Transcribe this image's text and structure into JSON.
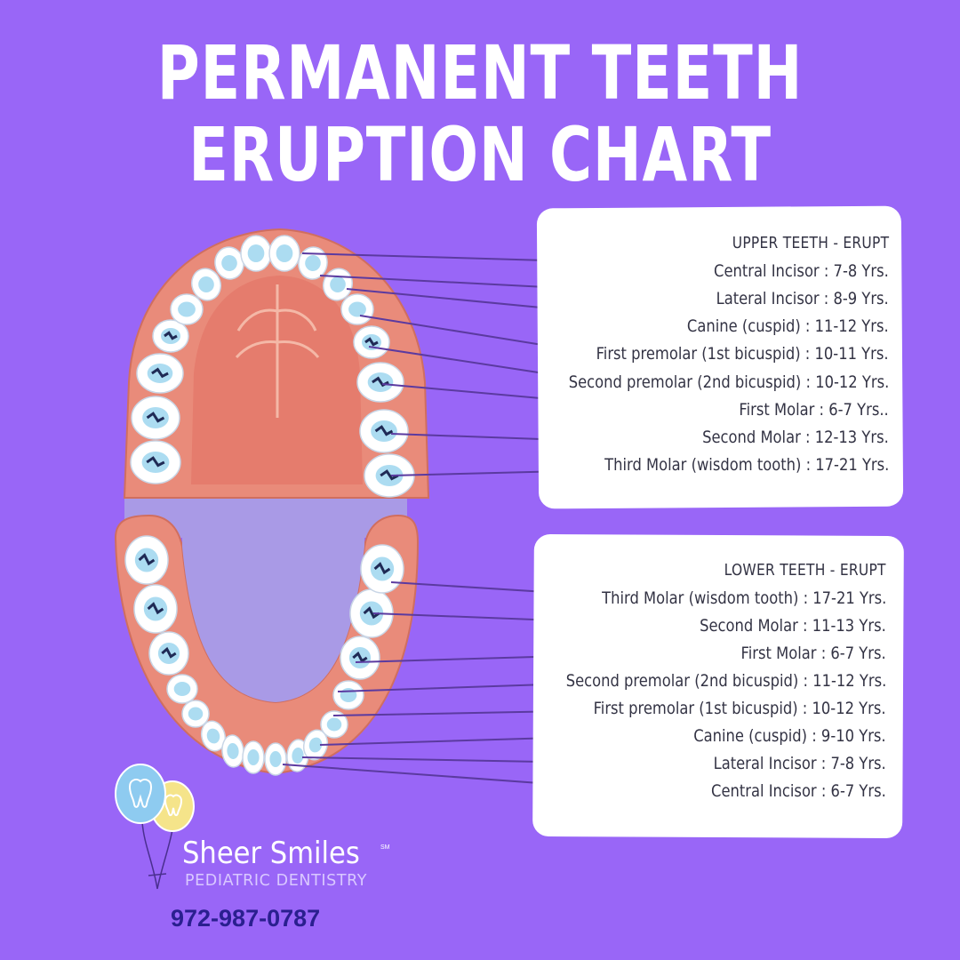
{
  "title": {
    "line1": "PERMANENT TEETH",
    "line2": "ERUPTION CHART"
  },
  "upper": {
    "heading": "UPPER TEETH - ERUPT",
    "items": [
      "Central Incisor : 7-8 Yrs.",
      "Lateral Incisor  : 8-9 Yrs.",
      "Canine (cuspid) : 11-12 Yrs.",
      "First premolar (1st bicuspid) : 10-11 Yrs.",
      "Second premolar (2nd bicuspid) : 10-12 Yrs.",
      "First Molar : 6-7 Yrs..",
      "Second Molar : 12-13 Yrs.",
      "Third Molar (wisdom tooth) : 17-21 Yrs."
    ]
  },
  "lower": {
    "heading": "LOWER TEETH - ERUPT",
    "items": [
      "Third Molar (wisdom tooth) : 17-21 Yrs.",
      "Second Molar : 11-13 Yrs.",
      "First Molar : 6-7 Yrs.",
      "Second premolar (2nd bicuspid) : 11-12 Yrs.",
      "First premolar (1st bicuspid) : 10-12 Yrs.",
      "Canine (cuspid) : 9-10 Yrs.",
      "Lateral Incisor  : 7-8 Yrs.",
      "Central Incisor : 6-7 Yrs."
    ]
  },
  "brand": {
    "name": "Sheer Smiles",
    "trademark": "SM",
    "subtitle": "PEDIATRIC DENTISTRY",
    "phone": "972-987-0787",
    "logo_icon": "tooth-balloons-icon"
  },
  "colors": {
    "background": "#9966f7",
    "panel": "#ffffff",
    "gum": "#e88a78",
    "tooth": "#ffffff",
    "tooth_shadow": "#9ed6ef",
    "leader_line": "#5b3aa0",
    "balloon_blue": "#8ecbf0",
    "balloon_yellow": "#f5e48a",
    "phone_text": "#2a1f8f"
  }
}
